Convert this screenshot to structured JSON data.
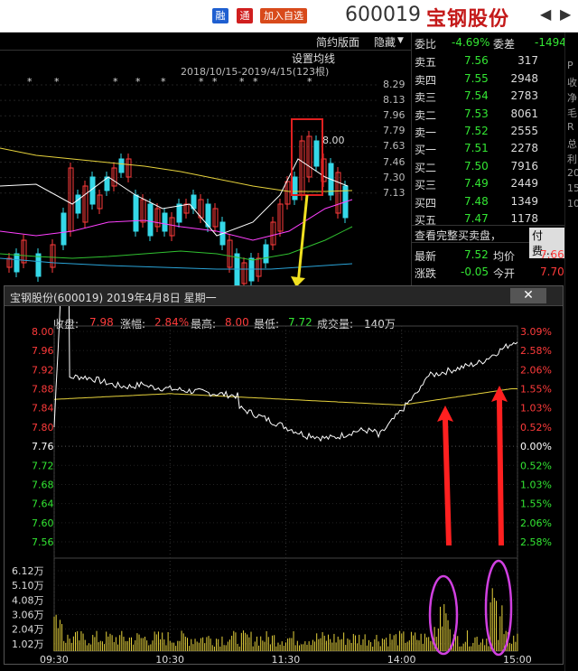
{
  "topbar": {
    "rong": "融",
    "tong": "通",
    "add_watchlist": "加入自选",
    "stock_code": "600019",
    "stock_name": "宝钢股份",
    "prev": "◀",
    "next": "▶"
  },
  "chart_top": {
    "simple_layout": "简约版面",
    "hide": "隐藏",
    "set_ma": "设置均线",
    "date_range": "2018/10/15-2019/4/15(123根)",
    "y_ticks": [
      "8.29",
      "8.13",
      "7.96",
      "7.79",
      "7.63",
      "7.46",
      "7.30",
      "7.13"
    ],
    "high_label": "8.00"
  },
  "order_book": {
    "committee_ratio_label": "委比",
    "committee_ratio": "-4.69%",
    "committee_diff_label": "委差",
    "committee_diff": "-1494",
    "sells": [
      {
        "label": "卖五",
        "price": "7.56",
        "vol": "317"
      },
      {
        "label": "卖四",
        "price": "7.55",
        "vol": "2948"
      },
      {
        "label": "卖三",
        "price": "7.54",
        "vol": "2783"
      },
      {
        "label": "卖二",
        "price": "7.53",
        "vol": "8061"
      },
      {
        "label": "卖一",
        "price": "7.52",
        "vol": "2555"
      }
    ],
    "buys": [
      {
        "label": "买一",
        "price": "7.51",
        "vol": "2278"
      },
      {
        "label": "买二",
        "price": "7.50",
        "vol": "7916"
      },
      {
        "label": "买三",
        "price": "7.49",
        "vol": "2449"
      },
      {
        "label": "买四",
        "price": "7.48",
        "vol": "1349"
      },
      {
        "label": "买五",
        "price": "7.47",
        "vol": "1178"
      }
    ],
    "view_full": "查看完整买卖盘，",
    "paid": "付费...",
    "latest_label": "最新",
    "latest": "7.52",
    "avg_label": "均价",
    "avg": "7.66",
    "change_label": "涨跌",
    "change": "-0.05",
    "open_label": "今开",
    "open": "7.70"
  },
  "popup": {
    "title": "宝钢股份(600019)  2019年4月8日  星期一",
    "close": "✕",
    "close_label": "收盘:",
    "close_val": "7.98",
    "pct_label": "涨幅:",
    "pct_val": "2.84%",
    "high_label": "最高:",
    "high_val": "8.00",
    "low_label": "最低:",
    "low_val": "7.72",
    "vol_label": "成交量:",
    "vol_val": "140万",
    "price_ticks": [
      "8.00",
      "7.96",
      "7.92",
      "7.88",
      "7.84",
      "7.80",
      "7.76",
      "7.72",
      "7.68",
      "7.64",
      "7.60",
      "7.56"
    ],
    "pct_ticks": [
      "3.09%",
      "2.58%",
      "2.06%",
      "1.55%",
      "1.03%",
      "0.52%",
      "0.00%",
      "0.52%",
      "1.03%",
      "1.55%",
      "2.06%",
      "2.58%"
    ],
    "vol_ticks": [
      "6.12万",
      "5.10万",
      "4.08万",
      "3.06万",
      "2.04万",
      "1.02万"
    ],
    "time_ticks": [
      "09:30",
      "10:30",
      "11:30",
      "14:00",
      "15:00"
    ]
  },
  "right_edge": [
    "P",
    "收",
    "净",
    "毛",
    "R",
    "总",
    "利",
    "20",
    "15",
    "10"
  ],
  "colors": {
    "up": "#ff3b3b",
    "down": "#33e633",
    "neutral": "#ffffff",
    "avg_line": "#e6d23c",
    "price_line": "#ffffff",
    "highlight": "#ff2020",
    "circle": "#d040e0",
    "pointer": "#f0e020"
  }
}
